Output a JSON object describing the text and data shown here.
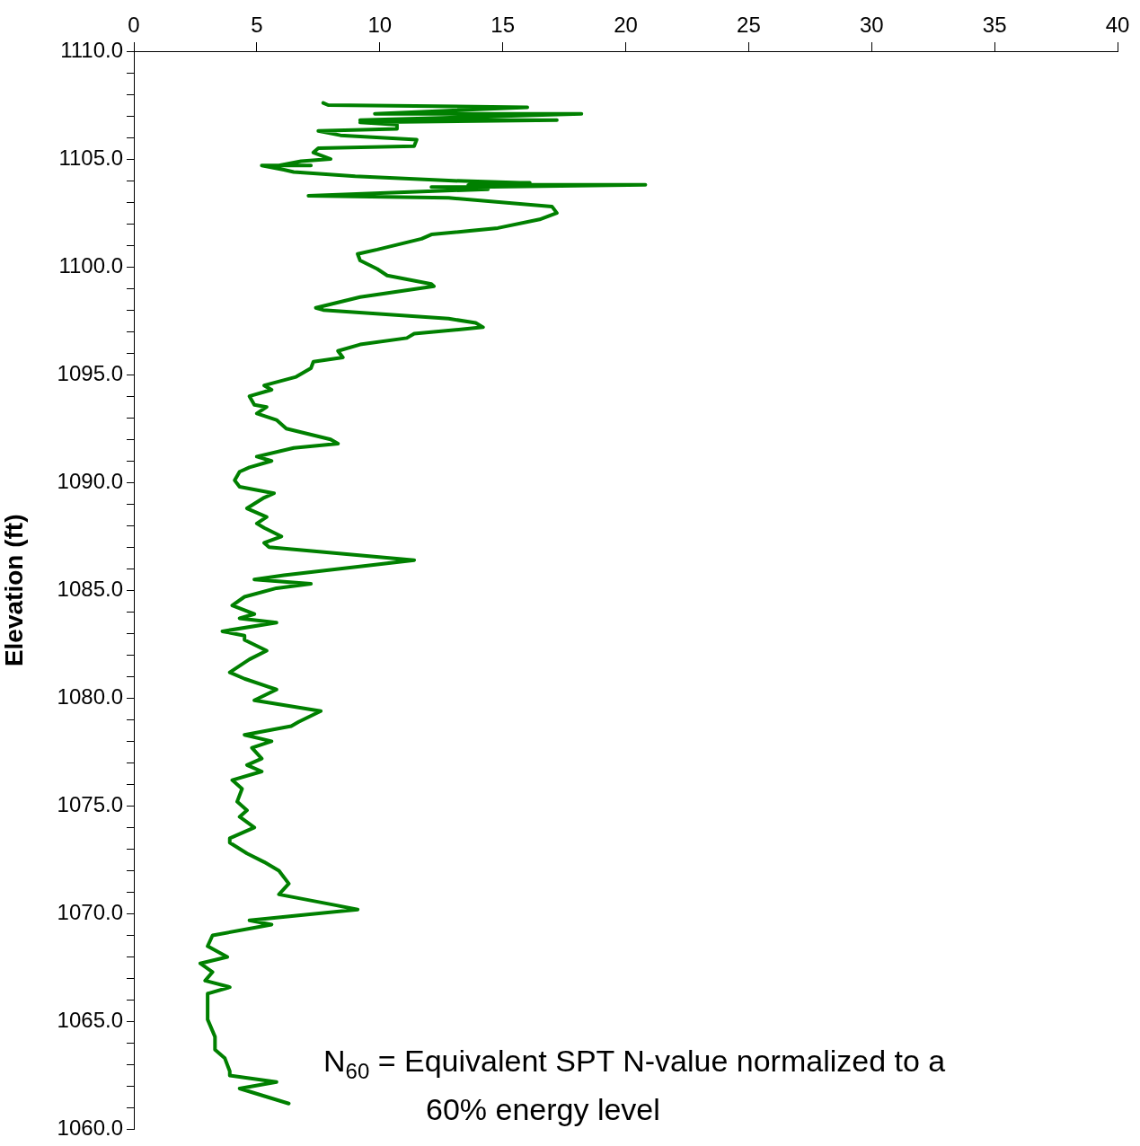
{
  "chart_data": {
    "type": "line",
    "ylabel": "Elevation (ft)",
    "annotations": [
      "N$_{60}$  = Equivalent SPT N-value normalized to a\n60% energy level"
    ],
    "xlim": [
      0,
      40
    ],
    "xticks": [
      0,
      5,
      10,
      15,
      20,
      25,
      30,
      35,
      40
    ],
    "ylim": [
      1060,
      1110
    ],
    "yticks": [
      {
        "value": 1060,
        "label": "1060.0"
      },
      {
        "value": 1061,
        "label": null
      },
      {
        "value": 1062,
        "label": null
      },
      {
        "value": 1063,
        "label": null
      },
      {
        "value": 1064,
        "label": null
      },
      {
        "value": 1065,
        "label": "1065.0"
      },
      {
        "value": 1066,
        "label": null
      },
      {
        "value": 1067,
        "label": null
      },
      {
        "value": 1068,
        "label": null
      },
      {
        "value": 1069,
        "label": null
      },
      {
        "value": 1070,
        "label": "1070.0"
      },
      {
        "value": 1071,
        "label": null
      },
      {
        "value": 1072,
        "label": null
      },
      {
        "value": 1073,
        "label": null
      },
      {
        "value": 1074,
        "label": null
      },
      {
        "value": 1075,
        "label": "1075.0"
      },
      {
        "value": 1076,
        "label": null
      },
      {
        "value": 1077,
        "label": null
      },
      {
        "value": 1078,
        "label": null
      },
      {
        "value": 1079,
        "label": null
      },
      {
        "value": 1080,
        "label": "1080.0"
      },
      {
        "value": 1081,
        "label": null
      },
      {
        "value": 1082,
        "label": null
      },
      {
        "value": 1083,
        "label": null
      },
      {
        "value": 1084,
        "label": null
      },
      {
        "value": 1085,
        "label": "1085.0"
      },
      {
        "value": 1086,
        "label": null
      },
      {
        "value": 1087,
        "label": null
      },
      {
        "value": 1088,
        "label": null
      },
      {
        "value": 1089,
        "label": null
      },
      {
        "value": 1090,
        "label": "1090.0"
      },
      {
        "value": 1091,
        "label": null
      },
      {
        "value": 1092,
        "label": null
      },
      {
        "value": 1093,
        "label": null
      },
      {
        "value": 1094,
        "label": null
      },
      {
        "value": 1095,
        "label": "1095.0"
      },
      {
        "value": 1096,
        "label": null
      },
      {
        "value": 1097,
        "label": null
      },
      {
        "value": 1098,
        "label": null
      },
      {
        "value": 1099,
        "label": null
      },
      {
        "value": 1100,
        "label": "1100.0"
      },
      {
        "value": 1101,
        "label": null
      },
      {
        "value": 1102,
        "label": null
      },
      {
        "value": 1103,
        "label": null
      },
      {
        "value": 1104,
        "label": null
      },
      {
        "value": 1105,
        "label": "1105.0"
      },
      {
        "value": 1106,
        "label": null
      },
      {
        "value": 1107,
        "label": null
      },
      {
        "value": 1108,
        "label": null
      },
      {
        "value": 1109,
        "label": null
      },
      {
        "value": 1110,
        "label": "1110.0"
      }
    ],
    "grid": false,
    "legend": false,
    "marker": "none",
    "line_style": "solid",
    "series": [
      {
        "color": "#008000",
        "x": [
          7.7,
          7.9,
          16.0,
          9.8,
          18.2,
          9.2,
          17.2,
          9.2,
          10.7,
          10.7,
          7.5,
          8.4,
          11.5,
          11.4,
          7.5,
          7.3,
          8.0,
          6.8,
          5.9,
          7.2,
          5.2,
          6.1,
          6.5,
          9.0,
          12.8,
          15.7,
          16.1,
          13.6,
          20.8,
          13.9,
          12.1,
          14.4,
          7.1,
          12.8,
          17.0,
          17.2,
          16.5,
          14.8,
          12.1,
          11.7,
          9.9,
          9.1,
          9.2,
          9.9,
          10.3,
          12.1,
          12.2,
          9.2,
          7.4,
          7.7,
          12.8,
          13.9,
          14.2,
          11.4,
          11.1,
          9.2,
          8.3,
          8.5,
          7.3,
          7.2,
          6.6,
          5.3,
          5.6,
          4.7,
          4.9,
          5.4,
          5.0,
          5.8,
          6.2,
          8.0,
          8.3,
          6.5,
          5.0,
          5.6,
          4.7,
          4.3,
          4.1,
          4.3,
          5.7,
          5.3,
          4.6,
          5.4,
          5.0,
          5.3,
          6.0,
          5.3,
          5.5,
          11.4,
          6.1,
          4.9,
          7.2,
          5.8,
          4.5,
          4.0,
          4.9,
          4.3,
          5.8,
          3.6,
          4.5,
          4.5,
          5.4,
          4.7,
          3.9,
          4.5,
          5.8,
          4.9,
          7.6,
          6.7,
          6.4,
          4.5,
          5.6,
          4.8,
          5.2,
          4.6,
          5.2,
          4.0,
          4.4,
          4.2,
          4.6,
          4.3,
          4.9,
          3.9,
          3.9,
          4.6,
          5.3,
          5.9,
          6.3,
          5.9,
          8.2,
          9.1,
          4.7,
          5.6,
          3.2,
          3.0,
          3.8,
          2.7,
          3.2,
          2.9,
          3.9,
          3.0,
          3.0,
          3.3,
          3.3,
          3.7,
          3.9,
          3.9,
          5.8,
          4.3,
          6.3
        ],
        "values": [
          1107.6,
          1107.5,
          1107.4,
          1107.1,
          1107.1,
          1106.8,
          1106.8,
          1106.7,
          1106.6,
          1106.4,
          1106.3,
          1106.1,
          1105.9,
          1105.6,
          1105.5,
          1105.3,
          1105.0,
          1104.9,
          1104.7,
          1104.7,
          1104.7,
          1104.5,
          1104.4,
          1104.2,
          1104.0,
          1103.9,
          1103.9,
          1103.8,
          1103.8,
          1103.7,
          1103.7,
          1103.6,
          1103.3,
          1103.2,
          1102.8,
          1102.5,
          1102.2,
          1101.8,
          1101.5,
          1101.3,
          1100.8,
          1100.6,
          1100.3,
          1099.9,
          1099.6,
          1099.2,
          1099.1,
          1098.6,
          1098.1,
          1098.0,
          1097.6,
          1097.4,
          1097.2,
          1096.9,
          1096.7,
          1096.4,
          1096.1,
          1095.8,
          1095.6,
          1095.3,
          1094.9,
          1094.5,
          1094.3,
          1094.0,
          1093.6,
          1093.5,
          1093.2,
          1092.9,
          1092.5,
          1092.0,
          1091.8,
          1091.6,
          1091.2,
          1091.0,
          1090.7,
          1090.5,
          1090.1,
          1089.8,
          1089.5,
          1089.3,
          1088.8,
          1088.4,
          1088.1,
          1087.9,
          1087.5,
          1087.2,
          1087.0,
          1086.4,
          1085.7,
          1085.5,
          1085.3,
          1085.1,
          1084.7,
          1084.3,
          1083.9,
          1083.7,
          1083.5,
          1083.1,
          1082.9,
          1082.7,
          1082.2,
          1081.8,
          1081.2,
          1080.9,
          1080.4,
          1079.9,
          1079.4,
          1078.9,
          1078.7,
          1078.3,
          1078.0,
          1077.7,
          1077.2,
          1076.9,
          1076.6,
          1076.2,
          1075.8,
          1075.2,
          1074.8,
          1074.5,
          1074.0,
          1073.5,
          1073.3,
          1072.8,
          1072.4,
          1072.0,
          1071.4,
          1070.9,
          1070.4,
          1070.2,
          1069.7,
          1069.5,
          1069.0,
          1068.5,
          1068.0,
          1067.7,
          1067.3,
          1066.9,
          1066.6,
          1066.3,
          1065.1,
          1064.3,
          1063.7,
          1063.3,
          1062.7,
          1062.5,
          1062.2,
          1061.9,
          1061.2
        ]
      }
    ]
  }
}
